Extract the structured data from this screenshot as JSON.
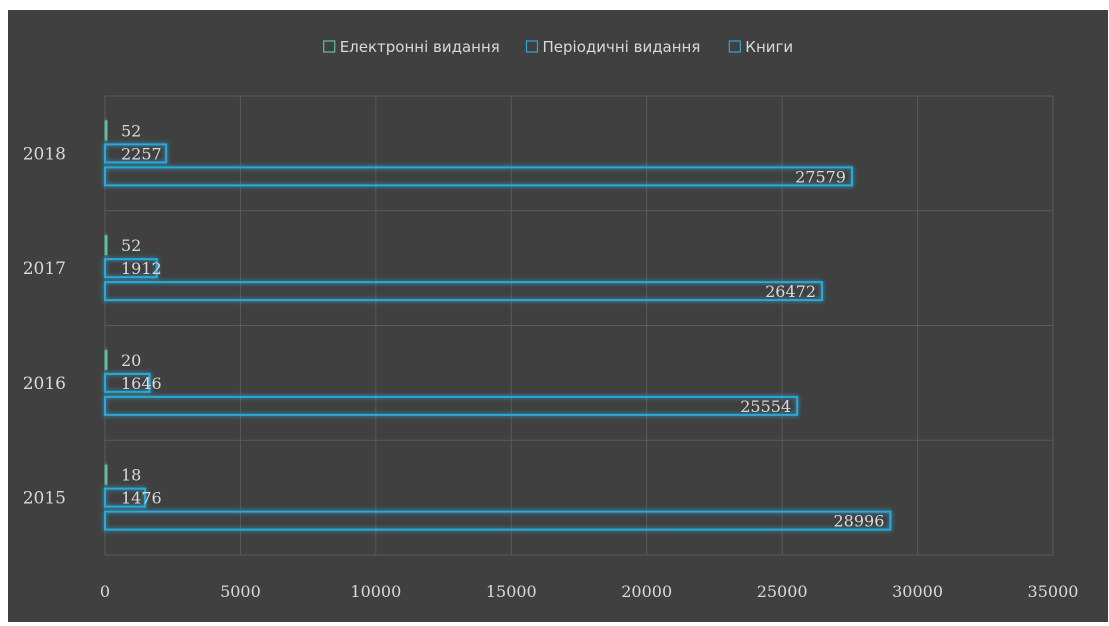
{
  "chart_data": {
    "type": "bar",
    "orientation": "horizontal",
    "categories": [
      "2015",
      "2016",
      "2017",
      "2018"
    ],
    "series": [
      {
        "name": "Електронні видання",
        "values": [
          18,
          20,
          52,
          52
        ],
        "color": "#5fbfa0"
      },
      {
        "name": "Періодичні видання",
        "values": [
          1476,
          1646,
          1912,
          2257
        ],
        "color": "#2aa8d8"
      },
      {
        "name": "Книги",
        "values": [
          28996,
          25554,
          26472,
          27579
        ],
        "color": "#2aa8d8"
      }
    ],
    "xlim": [
      0,
      35000
    ],
    "xticks": [
      0,
      5000,
      10000,
      15000,
      20000,
      25000,
      30000,
      35000
    ],
    "grid": true,
    "legend_position": "top",
    "data_labels": true,
    "background": "#404040",
    "text_color": "#d9d9d9",
    "grid_color": "#5a5a5a"
  }
}
